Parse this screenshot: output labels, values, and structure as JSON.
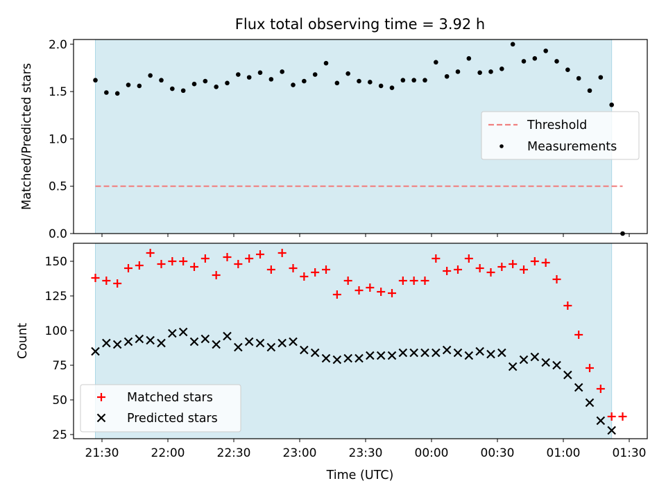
{
  "figure": {
    "title": "Flux total observing time = 3.92 h",
    "xlabel": "Time (UTC)"
  },
  "colors": {
    "shade": "#add8e6",
    "threshold": "#f08080",
    "matched": "#ff0000",
    "predicted": "#000000",
    "measurement": "#000000"
  },
  "x_ticks": [
    "21:30",
    "22:00",
    "22:30",
    "23:00",
    "23:30",
    "00:00",
    "00:30",
    "01:00",
    "01:30"
  ],
  "chart_data": [
    {
      "type": "scatter",
      "panel": "top",
      "ylabel": "Matched/Predicted stars",
      "ylim": [
        0,
        2.05
      ],
      "yticks": [
        0.0,
        0.5,
        1.0,
        1.5,
        2.0
      ],
      "ytick_labels": [
        "0.0",
        "0.5",
        "1.0",
        "1.5",
        "2.0"
      ],
      "shaded_region": [
        "21:27",
        "01:22"
      ],
      "threshold": {
        "name": "Threshold",
        "value": 0.5,
        "x_range": [
          "21:27",
          "01:27"
        ]
      },
      "legend": {
        "position": "center-right",
        "entries": [
          "Threshold",
          "Measurements"
        ]
      },
      "series": [
        {
          "name": "Measurements",
          "x": [
            "21:27",
            "21:32",
            "21:37",
            "21:42",
            "21:47",
            "21:52",
            "21:57",
            "22:02",
            "22:07",
            "22:12",
            "22:17",
            "22:22",
            "22:27",
            "22:32",
            "22:37",
            "22:42",
            "22:47",
            "22:52",
            "22:57",
            "23:02",
            "23:07",
            "23:12",
            "23:17",
            "23:22",
            "23:27",
            "23:32",
            "23:37",
            "23:42",
            "23:47",
            "23:52",
            "23:57",
            "00:02",
            "00:07",
            "00:12",
            "00:17",
            "00:22",
            "00:27",
            "00:32",
            "00:37",
            "00:42",
            "00:47",
            "00:52",
            "00:57",
            "01:02",
            "01:07",
            "01:12",
            "01:17",
            "01:22",
            "01:27"
          ],
          "y": [
            1.62,
            1.49,
            1.48,
            1.57,
            1.56,
            1.67,
            1.62,
            1.53,
            1.51,
            1.58,
            1.61,
            1.55,
            1.59,
            1.68,
            1.65,
            1.7,
            1.63,
            1.71,
            1.57,
            1.61,
            1.68,
            1.8,
            1.59,
            1.69,
            1.61,
            1.6,
            1.56,
            1.54,
            1.62,
            1.62,
            1.62,
            1.81,
            1.66,
            1.71,
            1.85,
            1.7,
            1.71,
            1.74,
            2.0,
            1.82,
            1.85,
            1.93,
            1.82,
            1.73,
            1.64,
            1.51,
            1.65,
            1.36,
            0.0
          ]
        }
      ]
    },
    {
      "type": "scatter",
      "panel": "bottom",
      "ylabel": "Count",
      "ylim": [
        22,
        163
      ],
      "yticks": [
        25,
        50,
        75,
        100,
        125,
        150
      ],
      "ytick_labels": [
        "25",
        "50",
        "75",
        "100",
        "125",
        "150"
      ],
      "shaded_region": [
        "21:27",
        "01:22"
      ],
      "legend": {
        "position": "lower-left",
        "entries": [
          "Matched stars",
          "Predicted stars"
        ]
      },
      "series": [
        {
          "name": "Matched stars",
          "marker": "+",
          "x": [
            "21:27",
            "21:32",
            "21:37",
            "21:42",
            "21:47",
            "21:52",
            "21:57",
            "22:02",
            "22:07",
            "22:12",
            "22:17",
            "22:22",
            "22:27",
            "22:32",
            "22:37",
            "22:42",
            "22:47",
            "22:52",
            "22:57",
            "23:02",
            "23:07",
            "23:12",
            "23:17",
            "23:22",
            "23:27",
            "23:32",
            "23:37",
            "23:42",
            "23:47",
            "23:52",
            "23:57",
            "00:02",
            "00:07",
            "00:12",
            "00:17",
            "00:22",
            "00:27",
            "00:32",
            "00:37",
            "00:42",
            "00:47",
            "00:52",
            "00:57",
            "01:02",
            "01:07",
            "01:12",
            "01:17",
            "01:22",
            "01:27"
          ],
          "y": [
            138,
            136,
            134,
            145,
            147,
            156,
            148,
            150,
            150,
            146,
            152,
            140,
            153,
            148,
            152,
            155,
            144,
            156,
            145,
            139,
            142,
            144,
            126,
            136,
            129,
            131,
            128,
            127,
            136,
            136,
            136,
            152,
            143,
            144,
            152,
            145,
            142,
            146,
            148,
            144,
            150,
            149,
            137,
            118,
            97,
            73,
            58,
            38,
            38
          ]
        },
        {
          "name": "Predicted stars",
          "marker": "x",
          "x": [
            "21:27",
            "21:32",
            "21:37",
            "21:42",
            "21:47",
            "21:52",
            "21:57",
            "22:02",
            "22:07",
            "22:12",
            "22:17",
            "22:22",
            "22:27",
            "22:32",
            "22:37",
            "22:42",
            "22:47",
            "22:52",
            "22:57",
            "23:02",
            "23:07",
            "23:12",
            "23:17",
            "23:22",
            "23:27",
            "23:32",
            "23:37",
            "23:42",
            "23:47",
            "23:52",
            "23:57",
            "00:02",
            "00:07",
            "00:12",
            "00:17",
            "00:22",
            "00:27",
            "00:32",
            "00:37",
            "00:42",
            "00:47",
            "00:52",
            "00:57",
            "01:02",
            "01:07",
            "01:12",
            "01:17",
            "01:22"
          ],
          "y": [
            85,
            91,
            90,
            92,
            94,
            93,
            91,
            98,
            99,
            92,
            94,
            90,
            96,
            88,
            92,
            91,
            88,
            91,
            92,
            86,
            84,
            80,
            79,
            80,
            80,
            82,
            82,
            82,
            84,
            84,
            84,
            84,
            86,
            84,
            82,
            85,
            83,
            84,
            74,
            79,
            81,
            77,
            75,
            68,
            59,
            48,
            35,
            28
          ]
        }
      ]
    }
  ]
}
